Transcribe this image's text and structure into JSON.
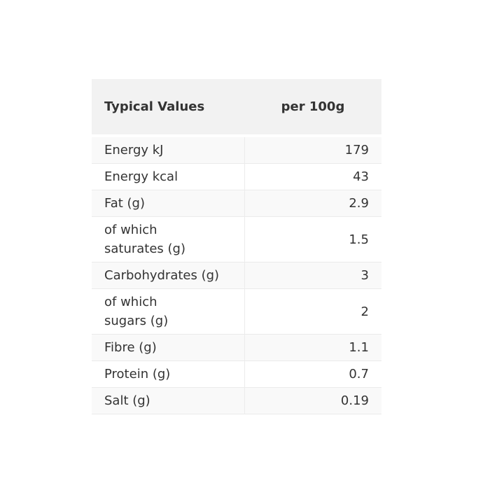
{
  "table": {
    "title": "nutrition-information",
    "headers": [
      {
        "label": "Typical Values"
      },
      {
        "label": "per 100g"
      }
    ],
    "rows": [
      {
        "label": "Energy kJ",
        "value": "179"
      },
      {
        "label": "Energy kcal",
        "value": "43"
      },
      {
        "label": "Fat (g)",
        "value": "2.9"
      },
      {
        "label": "of which\nsaturates (g)",
        "value": "1.5"
      },
      {
        "label": "Carbohydrates (g)",
        "value": "3"
      },
      {
        "label": "of which\nsugars (g)",
        "value": "2"
      },
      {
        "label": "Fibre (g)",
        "value": "1.1"
      },
      {
        "label": "Protein (g)",
        "value": "0.7"
      },
      {
        "label": "Salt (g)",
        "value": "0.19"
      }
    ]
  },
  "colors": {
    "page_background": "#ffffff",
    "header_background": "#f2f2f2",
    "stripe_row_background": "#f9f9f9",
    "plain_row_background": "#ffffff",
    "border": "#ebebeb",
    "text": "#333333"
  }
}
